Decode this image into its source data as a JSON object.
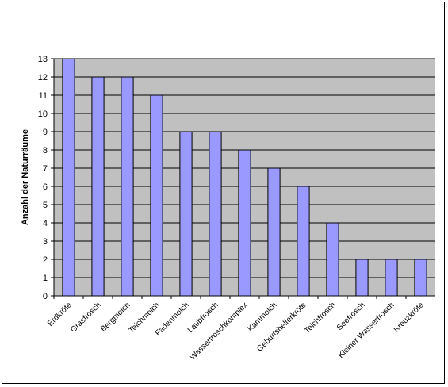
{
  "chart_data": {
    "type": "bar",
    "title": "",
    "xlabel": "",
    "ylabel": "Anzahl der Naturräume",
    "ylim": [
      0,
      13
    ],
    "yticks": [
      0,
      1,
      2,
      3,
      4,
      5,
      6,
      7,
      8,
      9,
      10,
      11,
      12,
      13
    ],
    "grid": true,
    "legend": "none",
    "categories": [
      "Erdkröte",
      "Grasfrosch",
      "Bergmolch",
      "Teichmolch",
      "Fadenmolch",
      "Laubfrosch",
      "Wasserfroschkomplex",
      "Kammolch",
      "Geburtshelferkröte",
      "Teichfrosch",
      "Seefrosch",
      "Kleiner Wasserfrosch",
      "Kreuzkröte"
    ],
    "values": [
      13,
      12,
      12,
      11,
      9,
      9,
      8,
      7,
      6,
      4,
      2,
      2,
      2
    ],
    "colors": {
      "bar": "#9999ff",
      "plot_background": "#c0c0c0",
      "grid": "#000000"
    }
  }
}
